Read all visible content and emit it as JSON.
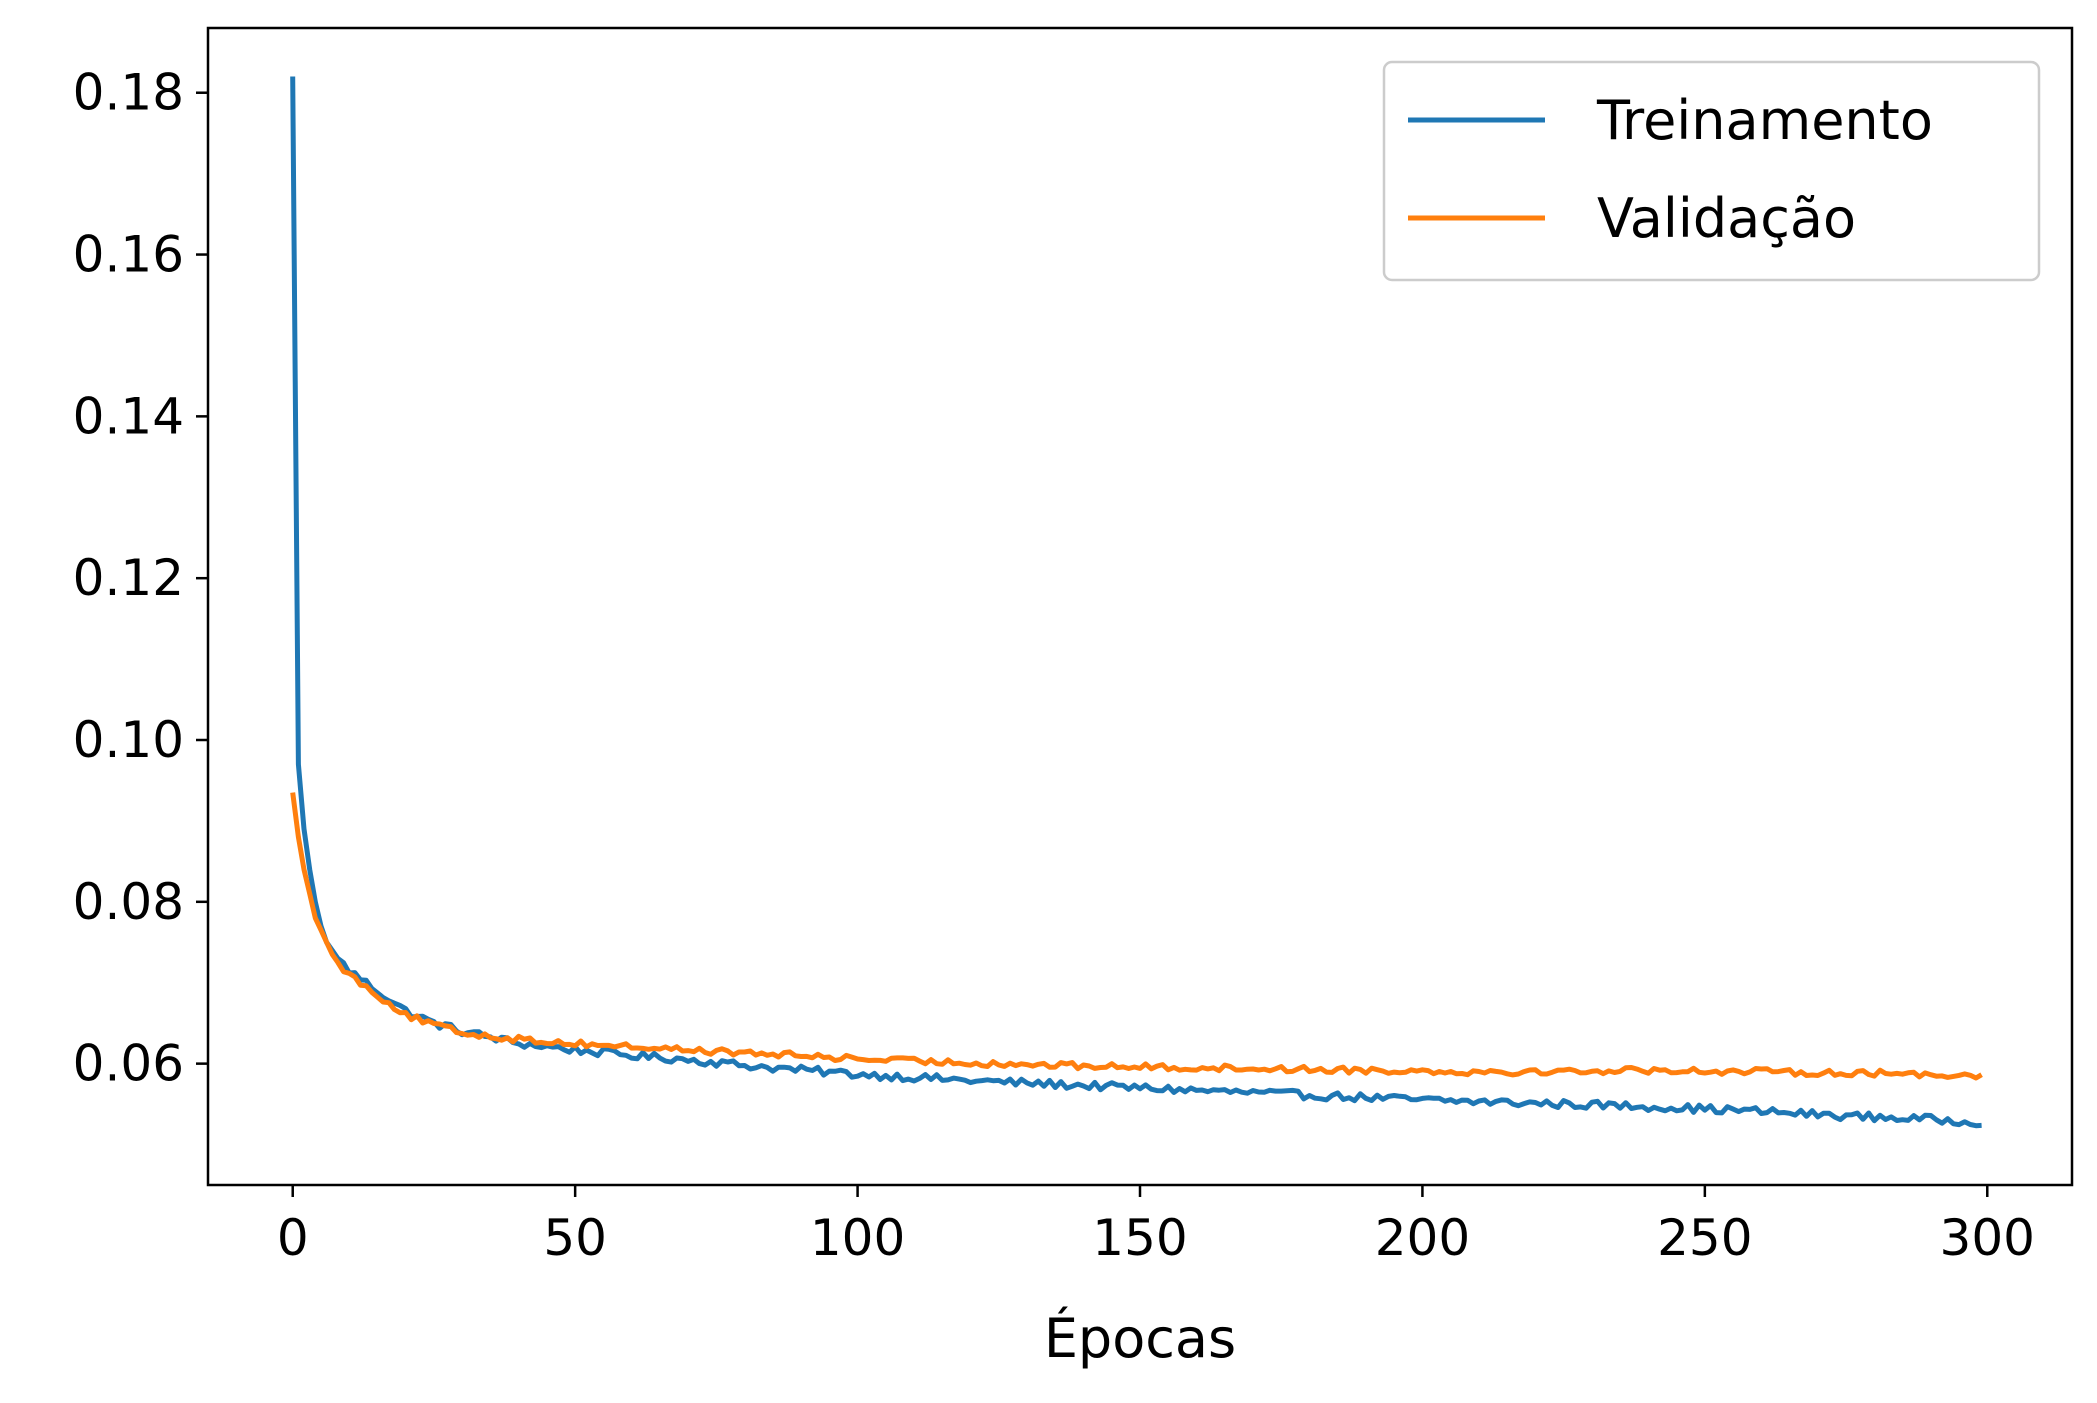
{
  "chart_data": {
    "type": "line",
    "title": "",
    "xlabel": "Épocas",
    "ylabel": "",
    "xlim": [
      -15,
      315
    ],
    "ylim": [
      0.045,
      0.188
    ],
    "xticks": [
      0,
      50,
      100,
      150,
      200,
      250,
      300
    ],
    "xtick_labels": [
      "0",
      "50",
      "100",
      "150",
      "200",
      "250",
      "300"
    ],
    "yticks": [
      0.06,
      0.08,
      0.1,
      0.12,
      0.14,
      0.16,
      0.18
    ],
    "ytick_labels": [
      "0.06",
      "0.08",
      "0.10",
      "0.12",
      "0.14",
      "0.16",
      "0.18"
    ],
    "grid": false,
    "legend_position": "top-right",
    "x_knots": [
      0,
      1,
      2,
      3,
      4,
      5,
      6,
      7,
      8,
      10,
      12,
      15,
      18,
      20,
      25,
      30,
      40,
      50,
      60,
      70,
      80,
      90,
      100,
      110,
      120,
      130,
      140,
      150,
      160,
      170,
      180,
      190,
      200,
      210,
      220,
      230,
      240,
      250,
      260,
      270,
      280,
      290,
      299
    ],
    "series": [
      {
        "name": "Treinamento",
        "color": "#1f77b4",
        "values": [
          0.182,
          0.097,
          0.089,
          0.084,
          0.08,
          0.077,
          0.075,
          0.074,
          0.073,
          0.0715,
          0.0705,
          0.069,
          0.0675,
          0.0665,
          0.065,
          0.064,
          0.0625,
          0.0617,
          0.061,
          0.0605,
          0.0598,
          0.0592,
          0.0587,
          0.0583,
          0.0579,
          0.0576,
          0.0573,
          0.057,
          0.0567,
          0.0564,
          0.0561,
          0.0558,
          0.0555,
          0.0553,
          0.0551,
          0.0549,
          0.0547,
          0.0544,
          0.0541,
          0.0537,
          0.0534,
          0.0531,
          0.0528
        ],
        "noise": 0.0005
      },
      {
        "name": "Validação",
        "color": "#ff7f0e",
        "values": [
          0.0935,
          0.088,
          0.084,
          0.081,
          0.078,
          0.0765,
          0.075,
          0.0735,
          0.0725,
          0.071,
          0.07,
          0.0685,
          0.067,
          0.066,
          0.0648,
          0.0638,
          0.063,
          0.0625,
          0.0621,
          0.0617,
          0.0613,
          0.061,
          0.0606,
          0.0603,
          0.0601,
          0.0599,
          0.0597,
          0.0596,
          0.0595,
          0.0594,
          0.0593,
          0.0592,
          0.0591,
          0.059,
          0.059,
          0.0591,
          0.0592,
          0.0591,
          0.059,
          0.0589,
          0.0588,
          0.0587,
          0.0586
        ],
        "noise": 0.0004
      }
    ]
  }
}
